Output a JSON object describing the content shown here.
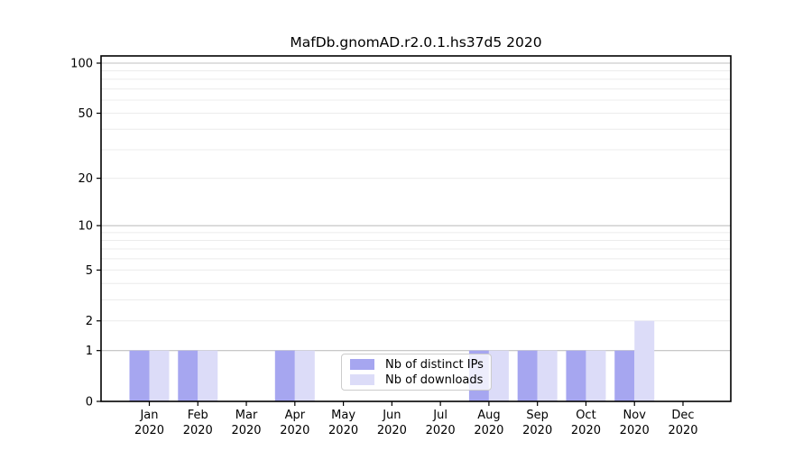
{
  "title": "MafDb.gnomAD.r2.0.1.hs37d5 2020",
  "colors": {
    "distinct_ips": "#a6a6f0",
    "downloads": "#dcdcf8",
    "major_grid": "#c0c0c0",
    "minor_grid": "#ececec",
    "axis": "#000000"
  },
  "legend": {
    "items": [
      {
        "label": "Nb of distinct IPs",
        "color_key": "distinct_ips"
      },
      {
        "label": "Nb of downloads",
        "color_key": "downloads"
      }
    ]
  },
  "chart_data": {
    "type": "bar",
    "title": "MafDb.gnomAD.r2.0.1.hs37d5 2020",
    "categories": [
      {
        "month": "Jan",
        "year": "2020"
      },
      {
        "month": "Feb",
        "year": "2020"
      },
      {
        "month": "Mar",
        "year": "2020"
      },
      {
        "month": "Apr",
        "year": "2020"
      },
      {
        "month": "May",
        "year": "2020"
      },
      {
        "month": "Jun",
        "year": "2020"
      },
      {
        "month": "Jul",
        "year": "2020"
      },
      {
        "month": "Aug",
        "year": "2020"
      },
      {
        "month": "Sep",
        "year": "2020"
      },
      {
        "month": "Oct",
        "year": "2020"
      },
      {
        "month": "Nov",
        "year": "2020"
      },
      {
        "month": "Dec",
        "year": "2020"
      }
    ],
    "series": [
      {
        "name": "Nb of distinct IPs",
        "values": [
          1,
          1,
          0,
          1,
          0,
          0,
          0,
          1,
          1,
          1,
          1,
          0
        ]
      },
      {
        "name": "Nb of downloads",
        "values": [
          1,
          1,
          0,
          1,
          0,
          0,
          0,
          1,
          1,
          1,
          2,
          0
        ]
      }
    ],
    "xlabel": "",
    "ylabel": "",
    "y_scale": "log1p",
    "ylim": [
      0,
      110
    ],
    "y_ticks": [
      0,
      1,
      2,
      5,
      10,
      20,
      50,
      100
    ],
    "y_major_gridlines": [
      1,
      10,
      100
    ],
    "y_minor_gridlines": [
      2,
      3,
      4,
      5,
      6,
      7,
      8,
      9,
      20,
      30,
      40,
      50,
      60,
      70,
      80,
      90
    ],
    "grid": "horizontal",
    "legend_position": "inside-bottom-center"
  }
}
